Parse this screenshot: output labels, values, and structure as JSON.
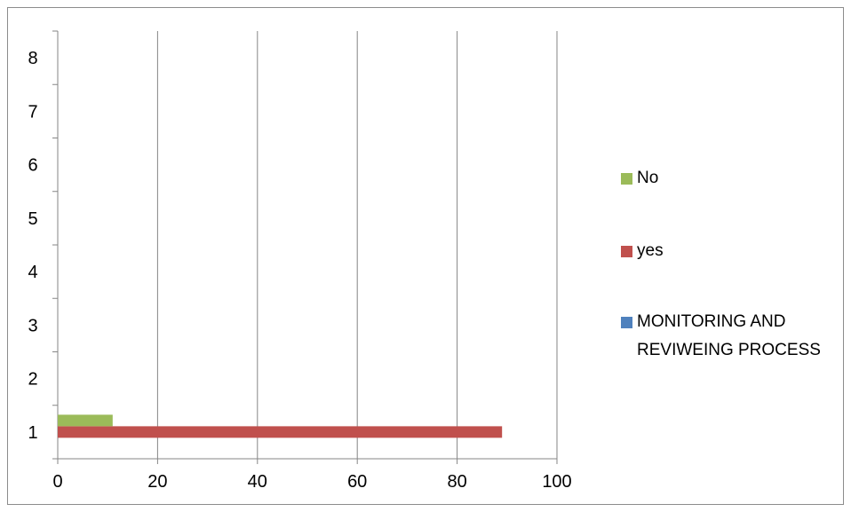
{
  "chart_data": {
    "type": "bar",
    "orientation": "horizontal",
    "title": "",
    "xlabel": "",
    "ylabel": "",
    "categories": [
      "1",
      "2",
      "3",
      "4",
      "5",
      "6",
      "7",
      "8"
    ],
    "xlim": [
      0,
      100
    ],
    "x_ticks": [
      "0",
      "20",
      "40",
      "60",
      "80",
      "100"
    ],
    "y_ticks": [
      "1",
      "2",
      "3",
      "4",
      "5",
      "6",
      "7",
      "8"
    ],
    "grid": "vertical",
    "legend_position": "right",
    "series": [
      {
        "name": "MONITORING AND REVIWEING PROCESS",
        "color": "#4F81BD",
        "values": [
          0,
          null,
          null,
          null,
          null,
          null,
          null,
          null
        ]
      },
      {
        "name": "yes",
        "color": "#C0504D",
        "values": [
          89,
          null,
          null,
          null,
          null,
          null,
          null,
          null
        ]
      },
      {
        "name": "No",
        "color": "#9BBB59",
        "values": [
          11,
          null,
          null,
          null,
          null,
          null,
          null,
          null
        ]
      }
    ],
    "legend_order": [
      "No",
      "yes",
      "MONITORING AND REVIWEING PROCESS"
    ]
  }
}
